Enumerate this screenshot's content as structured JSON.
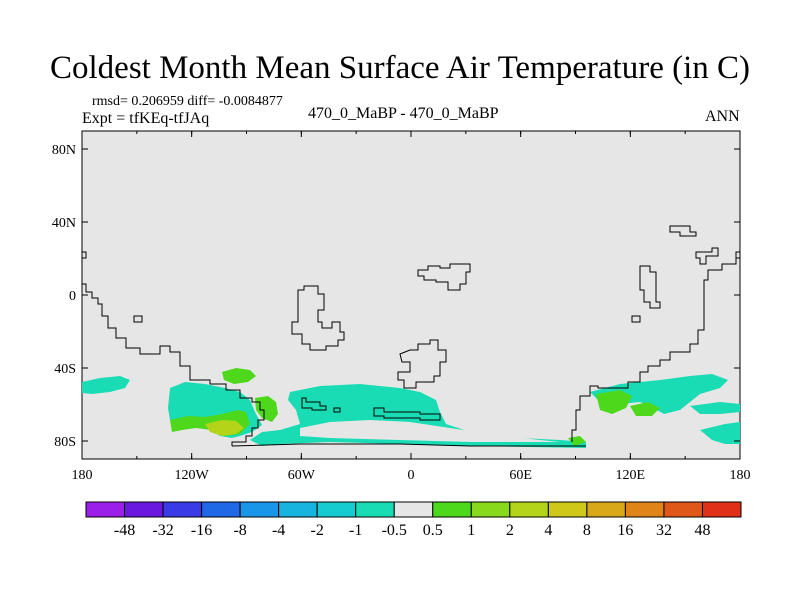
{
  "title": "Coldest Month Mean Surface Air Temperature (in C)",
  "stats": "rmsd= 0.206959 diff= -0.0084877",
  "expt": "Expt = tfKEq-tfJAq",
  "center_label": "470_0_MaBP - 470_0_MaBP",
  "ann": "ANN",
  "map": {
    "background_color": "#e6e6e6",
    "lon_ticks": [
      "180",
      "120W",
      "60W",
      "0",
      "60E",
      "120E",
      "180"
    ],
    "lat_ticks": [
      "80N",
      "40N",
      "0",
      "40S",
      "80S"
    ]
  },
  "colorbar": {
    "colors": [
      "#9b1fe8",
      "#6a18e0",
      "#3a3ae6",
      "#1f68e6",
      "#1a96e8",
      "#18b4e0",
      "#16ccd0",
      "#1adcb4",
      "#e6e6e6",
      "#4dd81c",
      "#88d81c",
      "#b4d41a",
      "#d0c818",
      "#d8a818",
      "#e08418",
      "#e05818",
      "#e03018"
    ],
    "labels": [
      "-48",
      "-32",
      "-16",
      "-8",
      "-4",
      "-2",
      "-1",
      "-0.5",
      "0.5",
      "1",
      "2",
      "4",
      "8",
      "16",
      "32",
      "48"
    ]
  },
  "icons": {
    "coastline": "coastline-outline"
  }
}
